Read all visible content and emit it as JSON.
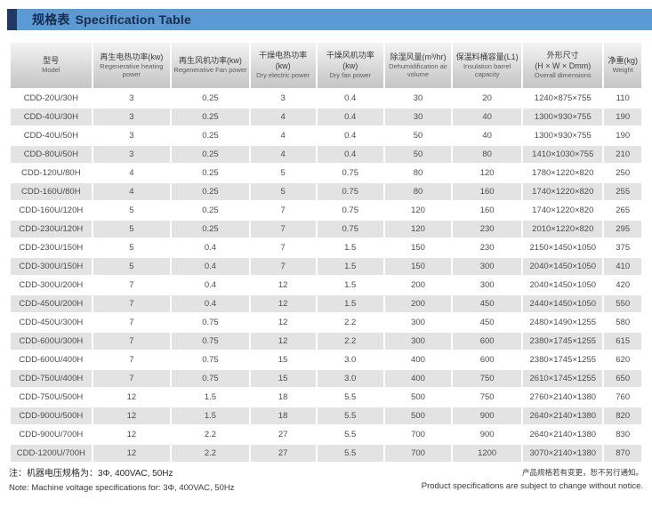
{
  "header": {
    "title_zh": "规格表",
    "title_en": "Specification Table"
  },
  "colors": {
    "accent_blue": "#5B9BD5",
    "accent_navy": "#1F3864",
    "row_alt_gray": "#E3E3E3"
  },
  "table": {
    "columns": [
      {
        "zh": "型号",
        "en": "Model"
      },
      {
        "zh": "再生电热功率(kw)",
        "en": "Regenerative heating power"
      },
      {
        "zh": "再生风机功率(kw)",
        "en": "Regenerative Fan power"
      },
      {
        "zh": "干燥电热功率\n(kw)",
        "en": "Dry electric power"
      },
      {
        "zh": "干燥风机功率\n(kw)",
        "en": "Dry fan power"
      },
      {
        "zh": "除湿风量(m³/hr)",
        "en": "Dehumidification air volume"
      },
      {
        "zh": "保温料桶容量(L1)",
        "en": "Insulation barrel capacity"
      },
      {
        "zh": "外形尺寸\n(H × W × Dmm)",
        "en": "Overall dimensions"
      },
      {
        "zh": "净重(kg)",
        "en": "Weight"
      }
    ],
    "rows": [
      [
        "CDD-20U/30H",
        "3",
        "0.25",
        "3",
        "0.4",
        "30",
        "20",
        "1240×875×755",
        "110"
      ],
      [
        "CDD-40U/30H",
        "3",
        "0.25",
        "4",
        "0.4",
        "30",
        "40",
        "1300×930×755",
        "190"
      ],
      [
        "CDD-40U/50H",
        "3",
        "0.25",
        "4",
        "0.4",
        "50",
        "40",
        "1300×930×755",
        "190"
      ],
      [
        "CDD-80U/50H",
        "3",
        "0.25",
        "4",
        "0.4",
        "50",
        "80",
        "1410×1030×755",
        "210"
      ],
      [
        "CDD-120U/80H",
        "4",
        "0.25",
        "5",
        "0.75",
        "80",
        "120",
        "1780×1220×820",
        "250"
      ],
      [
        "CDD-160U/80H",
        "4",
        "0.25",
        "5",
        "0.75",
        "80",
        "160",
        "1740×1220×820",
        "255"
      ],
      [
        "CDD-160U/120H",
        "5",
        "0.25",
        "7",
        "0.75",
        "120",
        "160",
        "1740×1220×820",
        "265"
      ],
      [
        "CDD-230U/120H",
        "5",
        "0.25",
        "7",
        "0.75",
        "120",
        "230",
        "2010×1220×820",
        "295"
      ],
      [
        "CDD-230U/150H",
        "5",
        "0.4",
        "7",
        "1.5",
        "150",
        "230",
        "2150×1450×1050",
        "375"
      ],
      [
        "CDD-300U/150H",
        "5",
        "0.4",
        "7",
        "1.5",
        "150",
        "300",
        "2040×1450×1050",
        "410"
      ],
      [
        "CDD-300U/200H",
        "7",
        "0.4",
        "12",
        "1.5",
        "200",
        "300",
        "2040×1450×1050",
        "420"
      ],
      [
        "CDD-450U/200H",
        "7",
        "0.4",
        "12",
        "1.5",
        "200",
        "450",
        "2440×1450×1050",
        "550"
      ],
      [
        "CDD-450U/300H",
        "7",
        "0.75",
        "12",
        "2.2",
        "300",
        "450",
        "2480×1490×1255",
        "580"
      ],
      [
        "CDD-600U/300H",
        "7",
        "0.75",
        "12",
        "2.2",
        "300",
        "600",
        "2380×1745×1255",
        "615"
      ],
      [
        "CDD-600U/400H",
        "7",
        "0.75",
        "15",
        "3.0",
        "400",
        "600",
        "2380×1745×1255",
        "620"
      ],
      [
        "CDD-750U/400H",
        "7",
        "0.75",
        "15",
        "3.0",
        "400",
        "750",
        "2610×1745×1255",
        "650"
      ],
      [
        "CDD-750U/500H",
        "12",
        "1.5",
        "18",
        "5.5",
        "500",
        "750",
        "2760×2140×1380",
        "760"
      ],
      [
        "CDD-900U/500H",
        "12",
        "1.5",
        "18",
        "5.5",
        "500",
        "900",
        "2640×2140×1380",
        "820"
      ],
      [
        "CDD-900U/700H",
        "12",
        "2.2",
        "27",
        "5.5",
        "700",
        "900",
        "2640×2140×1380",
        "830"
      ],
      [
        "CDD-1200U/700H",
        "12",
        "2.2",
        "27",
        "5.5",
        "700",
        "1200",
        "3070×2140×1380",
        "870"
      ]
    ]
  },
  "notes": {
    "left_zh": "注：机器电压规格为：3Φ, 400VAC, 50Hz",
    "left_en": "Note: Machine voltage specifications for: 3Φ, 400VAC, 50Hz",
    "right_zh": "产品规格若有变更，恕不另行通知。",
    "right_en": "Product specifications are subject to change without notice."
  }
}
